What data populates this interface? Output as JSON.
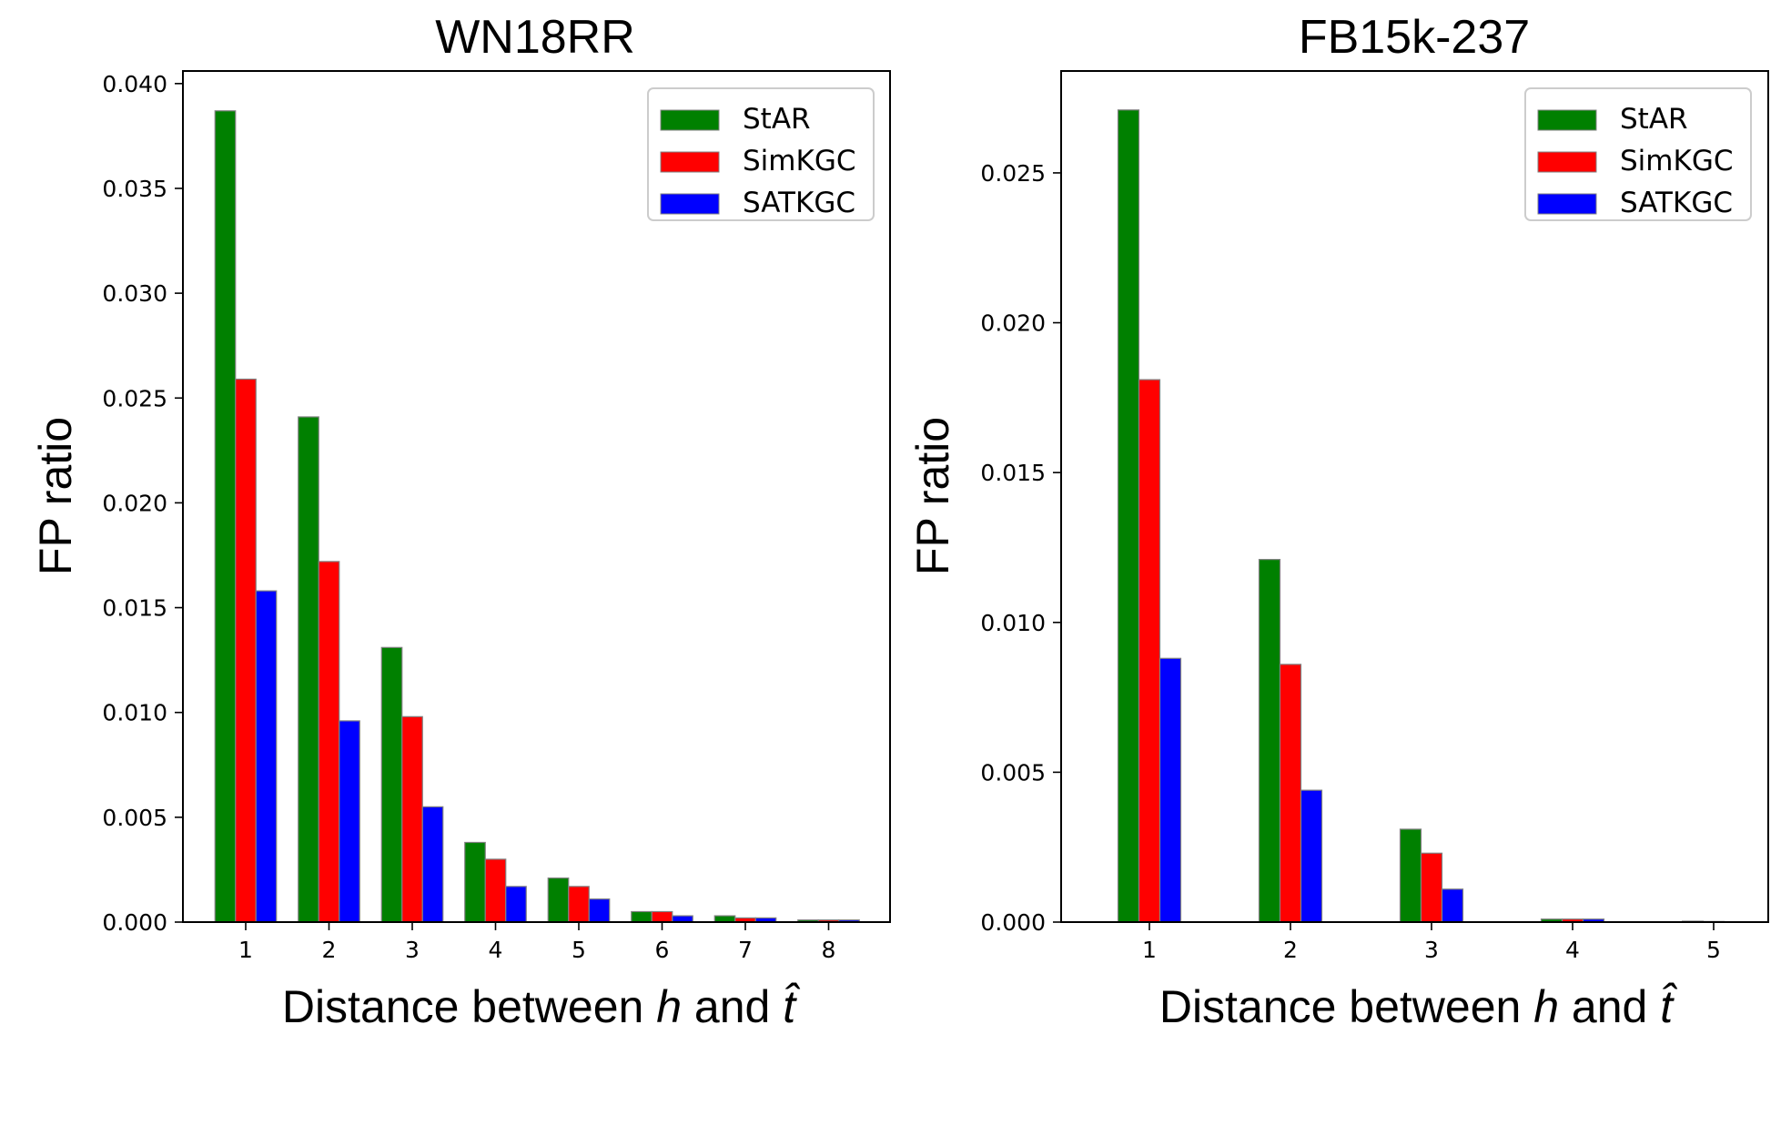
{
  "chart_data": [
    {
      "type": "bar",
      "title": "WN18RR",
      "xlabel_prefix": "Distance between ",
      "xlabel_var1": "h",
      "xlabel_mid": " and ",
      "xlabel_var2": "t̂",
      "ylabel": "FP ratio",
      "categories": [
        "1",
        "2",
        "3",
        "4",
        "5",
        "6",
        "7",
        "8"
      ],
      "ylim": [
        0,
        0.0406
      ],
      "yticks": [
        "0.000",
        "0.005",
        "0.010",
        "0.015",
        "0.020",
        "0.025",
        "0.030",
        "0.035",
        "0.040"
      ],
      "legend_position": "top-right",
      "grid": false,
      "series": [
        {
          "name": "StAR",
          "color": "#008000",
          "values": [
            0.0387,
            0.0241,
            0.0131,
            0.0038,
            0.0021,
            0.0005,
            0.0003,
            0.0001
          ]
        },
        {
          "name": "SimKGC",
          "color": "#ff0000",
          "values": [
            0.0259,
            0.0172,
            0.0098,
            0.003,
            0.0017,
            0.0005,
            0.0002,
            0.0001
          ]
        },
        {
          "name": "SATKGC",
          "color": "#0000ff",
          "values": [
            0.0158,
            0.0096,
            0.0055,
            0.0017,
            0.0011,
            0.0003,
            0.0002,
            0.0001
          ]
        }
      ]
    },
    {
      "type": "bar",
      "title": "FB15k-237",
      "xlabel_prefix": "Distance between ",
      "xlabel_var1": "h",
      "xlabel_mid": " and ",
      "xlabel_var2": "t̂",
      "ylabel": "FP ratio",
      "categories": [
        "1",
        "2",
        "3",
        "4",
        "5"
      ],
      "ylim": [
        0,
        0.0284
      ],
      "yticks": [
        "0.000",
        "0.005",
        "0.010",
        "0.015",
        "0.020",
        "0.025"
      ],
      "legend_position": "top-right",
      "grid": false,
      "series": [
        {
          "name": "StAR",
          "color": "#008000",
          "values": [
            0.0271,
            0.0121,
            0.0031,
            0.0001,
            3e-05
          ]
        },
        {
          "name": "SimKGC",
          "color": "#ff0000",
          "values": [
            0.0181,
            0.0086,
            0.0023,
            0.0001,
            2e-05
          ]
        },
        {
          "name": "SATKGC",
          "color": "#0000ff",
          "values": [
            0.0088,
            0.0044,
            0.0011,
            0.0001,
            1e-05
          ]
        }
      ]
    }
  ]
}
